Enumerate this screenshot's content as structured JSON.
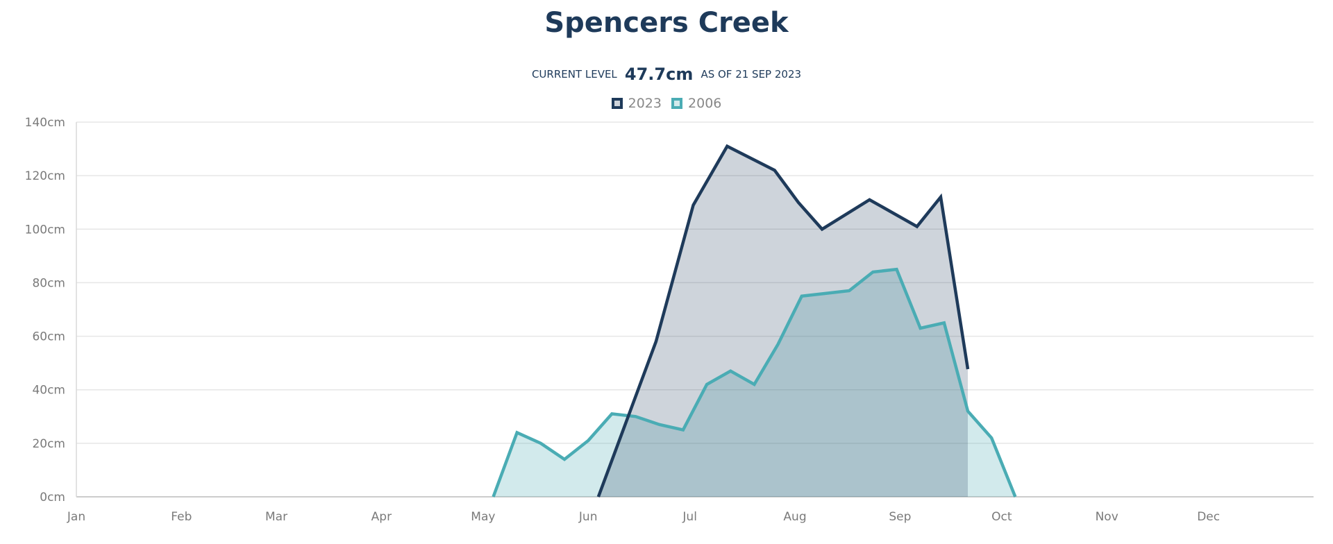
{
  "chart_data": {
    "type": "area",
    "title": "Spencers Creek",
    "current_level": {
      "prefix": "CURRENT LEVEL",
      "value": "47.7cm",
      "suffix": "AS OF 21 SEP 2023"
    },
    "legend_position": "top-center",
    "grid": true,
    "xlabel": "",
    "ylabel": "",
    "x_tick_labels": [
      "Jan",
      "Feb",
      "Mar",
      "Apr",
      "May",
      "Jun",
      "Jul",
      "Aug",
      "Sep",
      "Oct",
      "Nov",
      "Dec"
    ],
    "y_ticks": [
      0,
      20,
      40,
      60,
      80,
      100,
      120,
      140
    ],
    "y_tick_labels": [
      "0cm",
      "20cm",
      "40cm",
      "60cm",
      "80cm",
      "100cm",
      "120cm",
      "140cm"
    ],
    "ylim": [
      0,
      140
    ],
    "x_unit": "day of year",
    "xlim": [
      1,
      366
    ],
    "series": [
      {
        "name": "2023",
        "color": "#1e3a5a",
        "fill": "rgba(30,58,90,0.22)",
        "points": [
          [
            155,
            0
          ],
          [
            172,
            58
          ],
          [
            183,
            109
          ],
          [
            193,
            131
          ],
          [
            207,
            122
          ],
          [
            214,
            110
          ],
          [
            221,
            100
          ],
          [
            235,
            111
          ],
          [
            249,
            101
          ],
          [
            256,
            112
          ],
          [
            264,
            47.7
          ]
        ]
      },
      {
        "name": "2006",
        "color": "#4aacb4",
        "fill": "rgba(74,172,180,0.25)",
        "points": [
          [
            124,
            0
          ],
          [
            131,
            24
          ],
          [
            138,
            20
          ],
          [
            145,
            14
          ],
          [
            152,
            21
          ],
          [
            159,
            31
          ],
          [
            166,
            30
          ],
          [
            173,
            27
          ],
          [
            180,
            25
          ],
          [
            187,
            42
          ],
          [
            194,
            47
          ],
          [
            201,
            42
          ],
          [
            208,
            57
          ],
          [
            215,
            75
          ],
          [
            222,
            76
          ],
          [
            229,
            77
          ],
          [
            236,
            84
          ],
          [
            243,
            85
          ],
          [
            250,
            63
          ],
          [
            257,
            65
          ],
          [
            264,
            32
          ],
          [
            271,
            22
          ],
          [
            278,
            0
          ]
        ]
      }
    ]
  }
}
